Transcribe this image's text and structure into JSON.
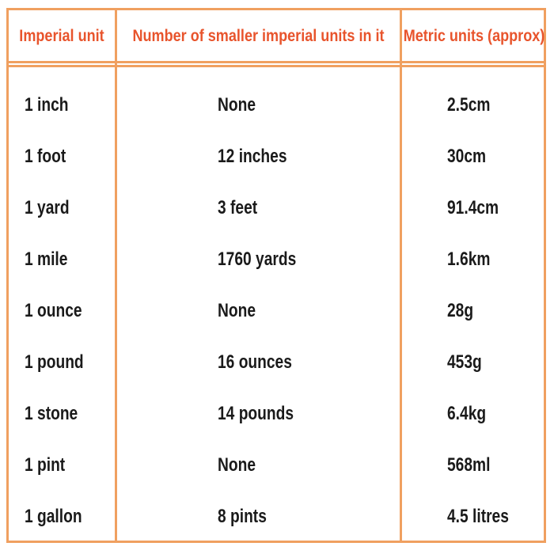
{
  "table": {
    "headers": [
      "Imperial unit",
      "Number of smaller imperial units in it",
      "Metric units (approx)"
    ],
    "rows": [
      [
        "1 inch",
        "None",
        "2.5cm"
      ],
      [
        "1 foot",
        "12 inches",
        "30cm"
      ],
      [
        "1 yard",
        "3 feet",
        "91.4cm"
      ],
      [
        "1 mile",
        "1760 yards",
        "1.6km"
      ],
      [
        "1 ounce",
        "None",
        "28g"
      ],
      [
        "1 pound",
        "16 ounces",
        "453g"
      ],
      [
        "1 stone",
        "14 pounds",
        "6.4kg"
      ],
      [
        "1 pint",
        "None",
        "568ml"
      ],
      [
        "1 gallon",
        "8 pints",
        "4.5 litres"
      ]
    ]
  },
  "colors": {
    "border": "#f0a060",
    "header_text": "#e8542c",
    "body_text": "#1a1a1a"
  }
}
